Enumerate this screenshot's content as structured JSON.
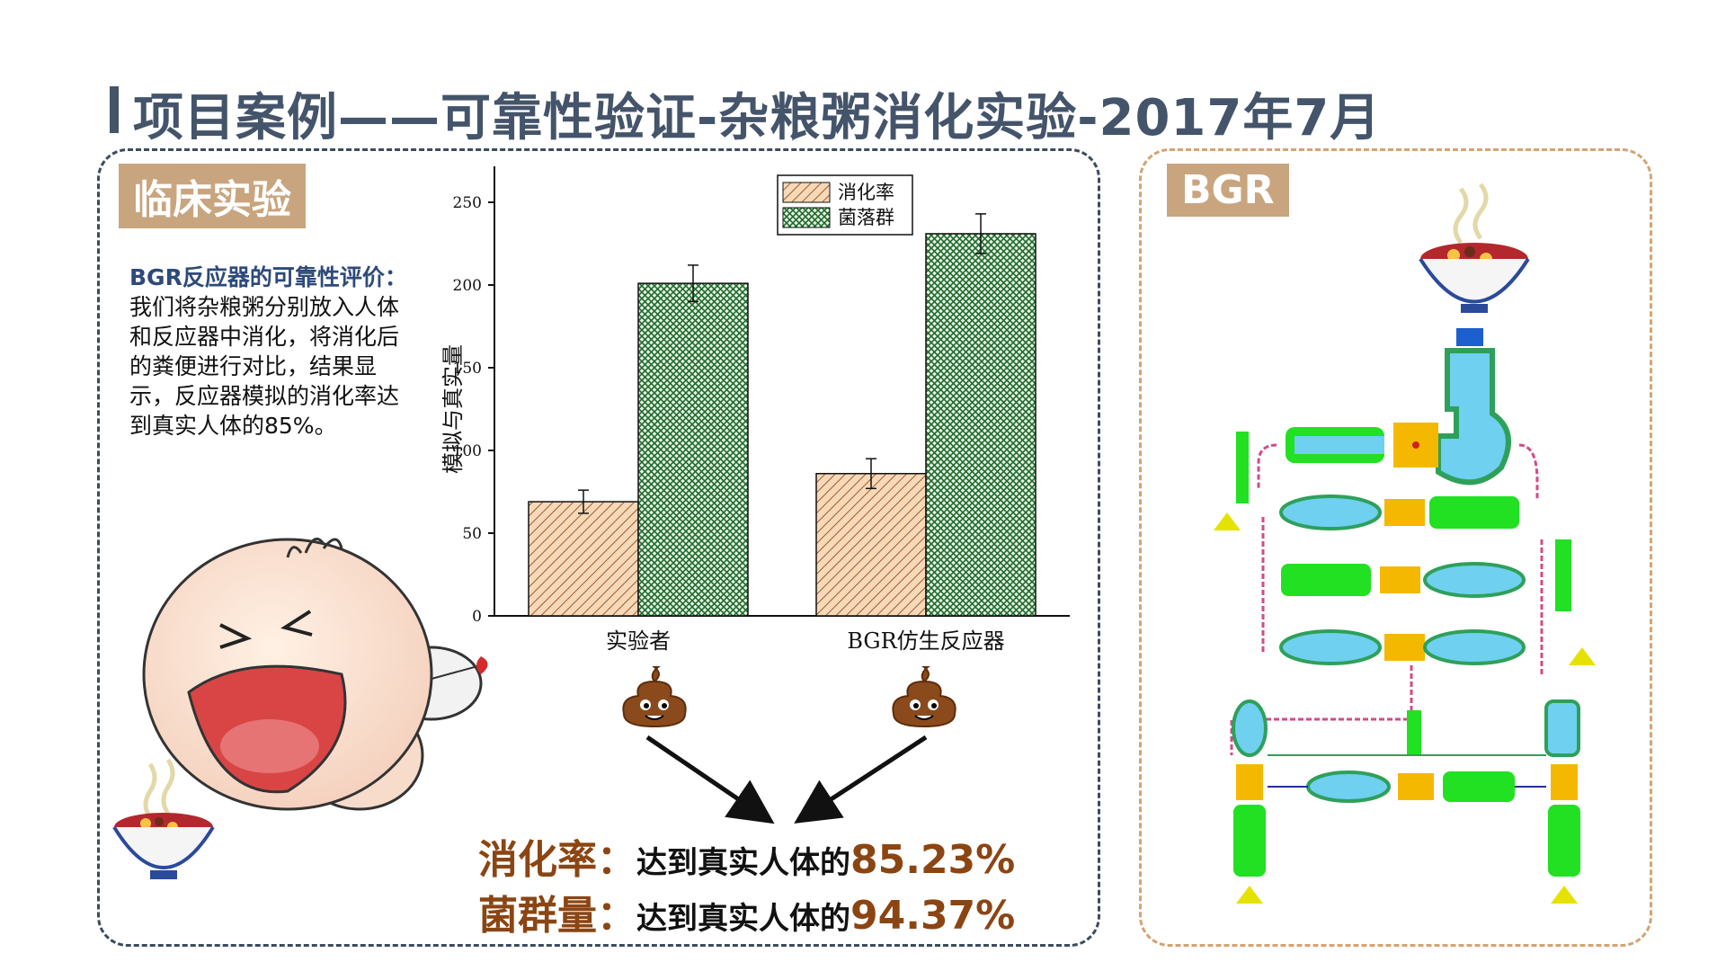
{
  "page": {
    "title": "项目案例——可靠性验证-杂粮粥消化实验-2017年7月"
  },
  "left_panel": {
    "tag": "临床实验",
    "desc_title": "BGR反应器的可靠性评价：",
    "desc_body": "我们将杂粮粥分别放入人体和反应器中消化，将消化后的粪便进行对比，结果显示，反应器模拟的消化率达到真实人体的85%。"
  },
  "right_panel": {
    "tag": "BGR"
  },
  "results": [
    {
      "label": "消化率：",
      "text": "达到真实人体的",
      "value": "85.23%"
    },
    {
      "label": "菌群量：",
      "text": "达到真实人体的",
      "value": "94.37%"
    }
  ],
  "chart_data": {
    "type": "bar",
    "categories": [
      "实验者",
      "BGR仿生反应器"
    ],
    "series": [
      {
        "name": "消化率",
        "values": [
          69,
          86
        ],
        "errors": [
          7,
          9
        ],
        "color": "#f2c9a0",
        "pattern": "hatch"
      },
      {
        "name": "菌落群",
        "values": [
          201,
          231
        ],
        "errors": [
          11,
          12
        ],
        "color": "#1f6b2d",
        "pattern": "crosshatch"
      }
    ],
    "ylabel": "模拟与真实量",
    "xlabel": "",
    "ylim": [
      0,
      250
    ],
    "yticks": [
      "0",
      "50",
      "100",
      "150",
      "200",
      "250"
    ],
    "legend_position": "top-center",
    "grid": false
  },
  "colors": {
    "title": "#44546a",
    "left_border": "#3e4b5e",
    "right_border": "#d4a373",
    "tag_bg": "#c9a57f",
    "result_accent": "#8b4513"
  }
}
